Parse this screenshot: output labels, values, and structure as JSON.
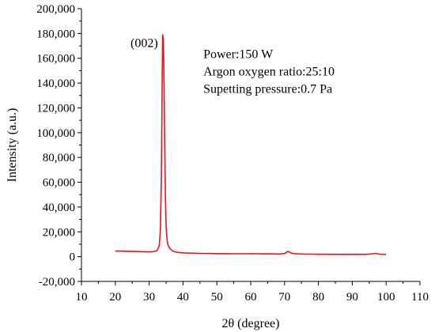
{
  "chart_data": {
    "type": "line",
    "title": "",
    "xlabel": "2θ (degree)",
    "ylabel": "Intensity (a.u.)",
    "xlim": [
      10,
      110
    ],
    "ylim": [
      -20000,
      200000
    ],
    "x_ticks": [
      10,
      20,
      30,
      40,
      50,
      60,
      70,
      80,
      90,
      100,
      110
    ],
    "x_tick_labels": [
      "10",
      "20",
      "30",
      "40",
      "50",
      "60",
      "70",
      "80",
      "90",
      "100",
      "110"
    ],
    "y_ticks": [
      -20000,
      0,
      20000,
      40000,
      60000,
      80000,
      100000,
      120000,
      140000,
      160000,
      180000,
      200000
    ],
    "y_tick_labels": [
      "-20,000",
      "0",
      "20,000",
      "40,000",
      "60,000",
      "80,000",
      "100,000",
      "120,000",
      "140,000",
      "160,000",
      "180,000",
      "200,000"
    ],
    "grid": false,
    "series": [
      {
        "color": "#e8141c",
        "x": [
          20,
          22,
          24,
          26,
          28,
          30,
          31,
          32,
          32.5,
          33,
          33.3,
          33.6,
          33.8,
          34,
          34.2,
          34.4,
          34.6,
          34.8,
          35,
          35.3,
          35.6,
          36,
          36.5,
          37,
          38,
          39,
          40,
          42,
          45,
          48,
          50,
          53,
          55,
          57,
          59,
          60,
          62,
          64,
          66,
          68,
          69,
          70,
          70.5,
          71,
          71.5,
          72,
          73,
          74,
          76,
          78,
          80,
          82,
          84,
          86,
          88,
          90,
          92,
          94,
          95,
          96,
          97,
          98,
          100
        ],
        "y": [
          4500,
          4400,
          4300,
          4200,
          4000,
          3800,
          4000,
          4500,
          5500,
          9000,
          20000,
          60000,
          130000,
          179000,
          175000,
          140000,
          90000,
          50000,
          25000,
          13000,
          9000,
          7000,
          5500,
          4500,
          3600,
          3200,
          3000,
          2800,
          2600,
          2500,
          2400,
          2400,
          2300,
          2300,
          2300,
          2400,
          2300,
          2200,
          2200,
          2100,
          2200,
          2500,
          3300,
          4200,
          3600,
          2800,
          2400,
          2200,
          2000,
          2000,
          1900,
          1900,
          1800,
          1800,
          1800,
          1900,
          1800,
          1800,
          2000,
          2300,
          2600,
          2000,
          1700
        ]
      }
    ],
    "annotations": [
      {
        "text": "(002)",
        "x": 24.5,
        "y": 169000
      },
      {
        "text": "Power:150 W",
        "x": 46,
        "y": 160000
      },
      {
        "text": "Argon oxygen ratio:25:10",
        "x": 46,
        "y": 146000
      },
      {
        "text": "Supetting pressure:0.7 Pa",
        "x": 46,
        "y": 132000
      }
    ]
  }
}
